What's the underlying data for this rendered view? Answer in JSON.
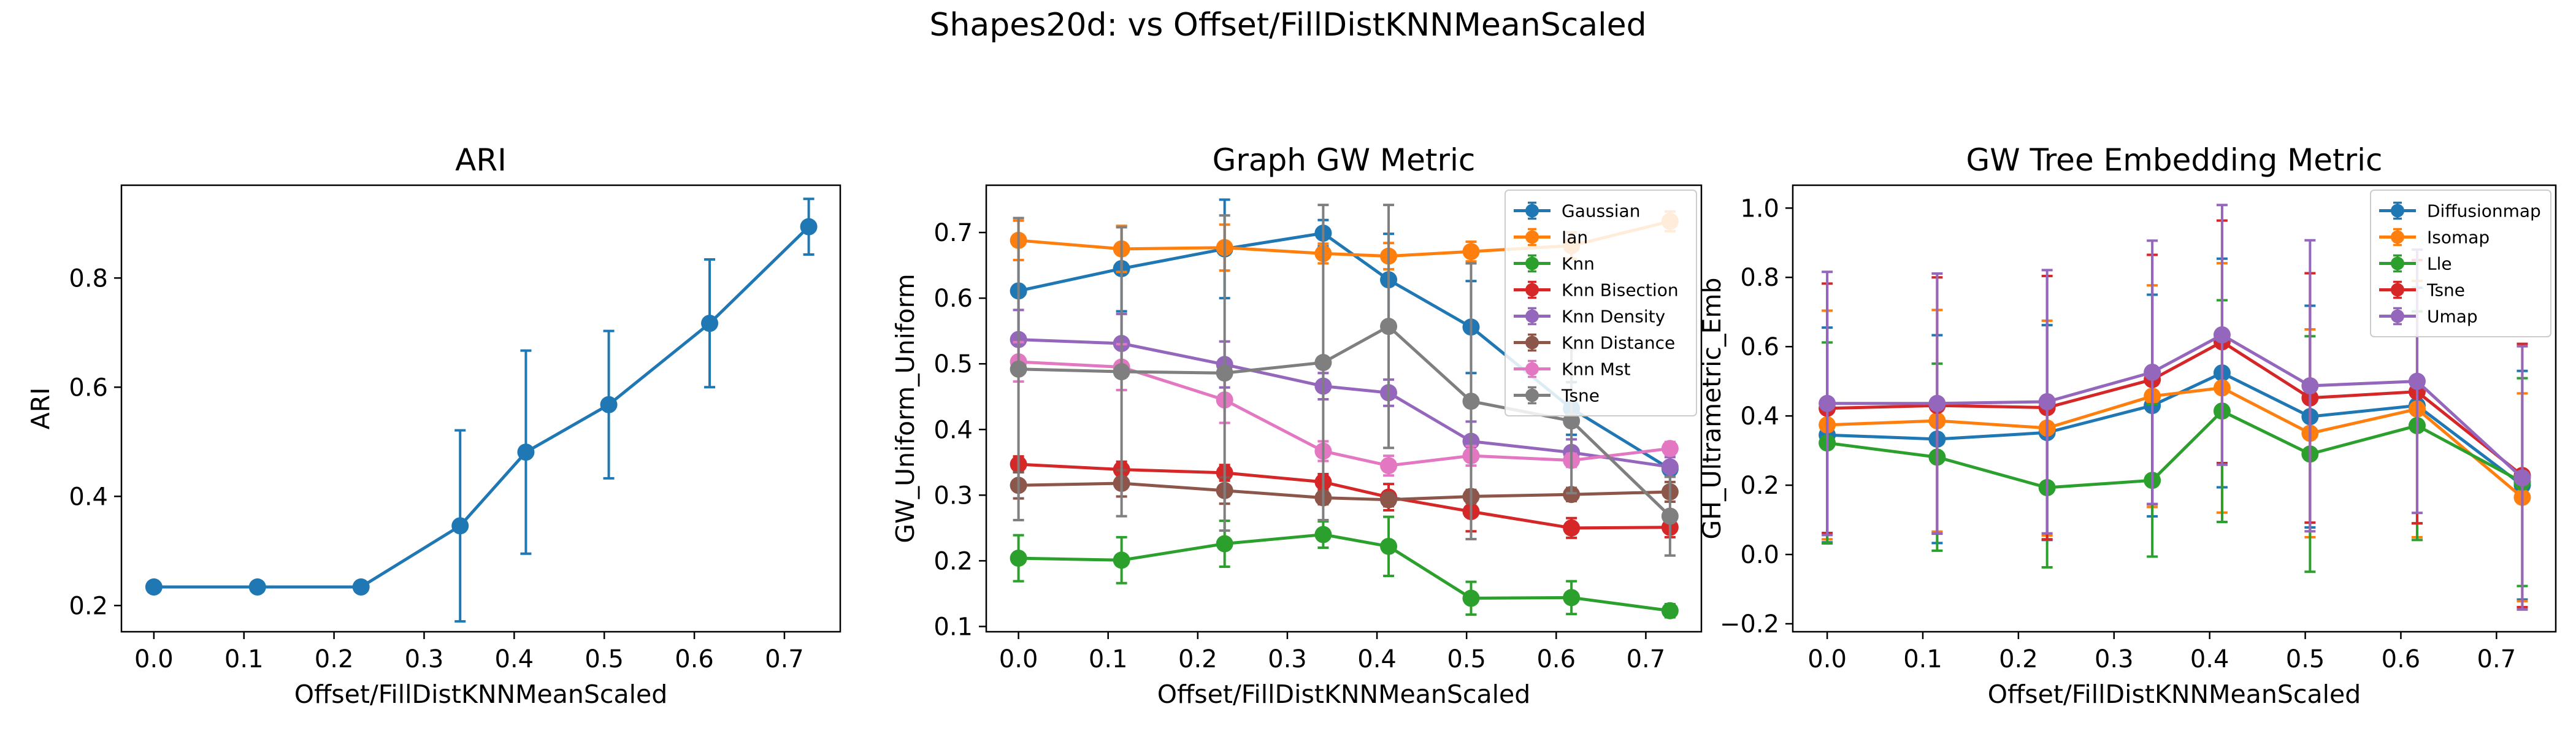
{
  "figure": {
    "suptitle": "Shapes20d: vs Offset/FillDistKNNMeanScaled"
  },
  "chart_data": [
    {
      "type": "line",
      "title": "ARI",
      "xlabel": "Offset/FillDistKNNMeanScaled",
      "ylabel": "ARI",
      "xlim": [
        -0.036,
        0.762
      ],
      "ylim": [
        0.152,
        0.97
      ],
      "xticks": [
        0.0,
        0.1,
        0.2,
        0.3,
        0.4,
        0.5,
        0.6,
        0.7
      ],
      "yticks": [
        0.2,
        0.4,
        0.6,
        0.8
      ],
      "grid": false,
      "legend": null,
      "x": [
        0.0,
        0.115,
        0.23,
        0.34,
        0.413,
        0.505,
        0.617,
        0.727
      ],
      "series": [
        {
          "color": "#1f77b4",
          "values": [
            0.234,
            0.234,
            0.234,
            0.346,
            0.481,
            0.568,
            0.717,
            0.894
          ],
          "errors": [
            0,
            0,
            0,
            0.175,
            0.186,
            0.135,
            0.117,
            0.051
          ]
        }
      ]
    },
    {
      "type": "line",
      "title": "Graph GW Metric",
      "xlabel": "Offset/FillDistKNNMeanScaled",
      "ylabel": "GW_Uniform_Uniform",
      "xlim": [
        -0.036,
        0.762
      ],
      "ylim": [
        0.092,
        0.772
      ],
      "xticks": [
        0.0,
        0.1,
        0.2,
        0.3,
        0.4,
        0.5,
        0.6,
        0.7
      ],
      "yticks": [
        0.1,
        0.2,
        0.3,
        0.4,
        0.5,
        0.6,
        0.7
      ],
      "grid": false,
      "legend": "top-right",
      "x": [
        0.0,
        0.115,
        0.23,
        0.34,
        0.413,
        0.505,
        0.617,
        0.727
      ],
      "series": [
        {
          "name": "Gaussian",
          "color": "#1f77b4",
          "values": [
            0.611,
            0.645,
            0.675,
            0.699,
            0.628,
            0.556,
            0.432,
            0.34
          ],
          "errors": [
            0.08,
            0.065,
            0.075,
            0.02,
            0.07,
            0.07,
            0.04,
            0.04
          ]
        },
        {
          "name": "Ian",
          "color": "#ff7f0e",
          "values": [
            0.688,
            0.675,
            0.677,
            0.668,
            0.664,
            0.671,
            0.68,
            0.717
          ],
          "errors": [
            0.03,
            0.035,
            0.035,
            0.015,
            0.02,
            0.015,
            0.02,
            0.015
          ]
        },
        {
          "name": "Knn",
          "color": "#2ca02c",
          "values": [
            0.204,
            0.201,
            0.226,
            0.24,
            0.222,
            0.143,
            0.144,
            0.124
          ],
          "errors": [
            0.035,
            0.035,
            0.035,
            0.02,
            0.045,
            0.025,
            0.025,
            0.01
          ]
        },
        {
          "name": "Knn Bisection",
          "color": "#d62728",
          "values": [
            0.347,
            0.339,
            0.334,
            0.32,
            0.297,
            0.275,
            0.25,
            0.251
          ],
          "errors": [
            0.012,
            0.012,
            0.012,
            0.012,
            0.02,
            0.03,
            0.015,
            0.015
          ]
        },
        {
          "name": "Knn Density",
          "color": "#9467bd",
          "values": [
            0.537,
            0.531,
            0.499,
            0.466,
            0.456,
            0.382,
            0.365,
            0.343
          ],
          "errors": [
            0.045,
            0.045,
            0.035,
            0.02,
            0.02,
            0.03,
            0.02,
            0.015
          ]
        },
        {
          "name": "Knn Distance",
          "color": "#8c564b",
          "values": [
            0.315,
            0.318,
            0.307,
            0.296,
            0.293,
            0.298,
            0.301,
            0.305
          ],
          "errors": [
            0.02,
            0.02,
            0.02,
            0.01,
            0.01,
            0.01,
            0.01,
            0.015
          ]
        },
        {
          "name": "Knn Mst",
          "color": "#e377c2",
          "values": [
            0.503,
            0.495,
            0.445,
            0.367,
            0.345,
            0.36,
            0.353,
            0.371
          ],
          "errors": [
            0.03,
            0.035,
            0.035,
            0.015,
            0.015,
            0.015,
            0.01,
            0.01
          ]
        },
        {
          "name": "Tsne",
          "color": "#7f7f7f",
          "values": [
            0.492,
            0.488,
            0.486,
            0.502,
            0.557,
            0.443,
            0.413,
            0.268
          ],
          "errors": [
            0.23,
            0.22,
            0.24,
            0.24,
            0.185,
            0.21,
            0.11,
            0.06
          ]
        }
      ]
    },
    {
      "type": "line",
      "title": "GW Tree Embedding Metric",
      "xlabel": "Offset/FillDistKNNMeanScaled",
      "ylabel": "GH_Ultrametric_Emb",
      "xlim": [
        -0.036,
        0.762
      ],
      "ylim": [
        -0.223,
        1.066
      ],
      "xticks": [
        0.0,
        0.1,
        0.2,
        0.3,
        0.4,
        0.5,
        0.6,
        0.7
      ],
      "yticks": [
        -0.2,
        0.0,
        0.2,
        0.4,
        0.6,
        0.8,
        1.0
      ],
      "grid": false,
      "legend": "top-right",
      "x": [
        0.0,
        0.115,
        0.23,
        0.34,
        0.413,
        0.505,
        0.617,
        0.727
      ],
      "series": [
        {
          "name": "Diffusionmap",
          "color": "#1f77b4",
          "values": [
            0.345,
            0.333,
            0.352,
            0.43,
            0.524,
            0.398,
            0.43,
            0.2
          ],
          "errors": [
            0.31,
            0.3,
            0.31,
            0.32,
            0.33,
            0.32,
            0.34,
            0.33
          ]
        },
        {
          "name": "Isomap",
          "color": "#ff7f0e",
          "values": [
            0.374,
            0.386,
            0.365,
            0.457,
            0.481,
            0.35,
            0.42,
            0.165
          ],
          "errors": [
            0.33,
            0.32,
            0.31,
            0.32,
            0.36,
            0.3,
            0.37,
            0.3
          ]
        },
        {
          "name": "Lle",
          "color": "#2ca02c",
          "values": [
            0.322,
            0.281,
            0.193,
            0.214,
            0.414,
            0.29,
            0.372,
            0.209
          ],
          "errors": [
            0.29,
            0.27,
            0.23,
            0.22,
            0.32,
            0.34,
            0.33,
            0.3
          ]
        },
        {
          "name": "Tsne",
          "color": "#d62728",
          "values": [
            0.422,
            0.43,
            0.424,
            0.505,
            0.614,
            0.452,
            0.47,
            0.228
          ],
          "errors": [
            0.36,
            0.37,
            0.38,
            0.36,
            0.35,
            0.36,
            0.38,
            0.38
          ]
        },
        {
          "name": "Umap",
          "color": "#9467bd",
          "values": [
            0.436,
            0.436,
            0.441,
            0.526,
            0.634,
            0.487,
            0.5,
            0.221
          ],
          "errors": [
            0.38,
            0.375,
            0.38,
            0.38,
            0.375,
            0.42,
            0.38,
            0.38
          ]
        }
      ]
    }
  ]
}
